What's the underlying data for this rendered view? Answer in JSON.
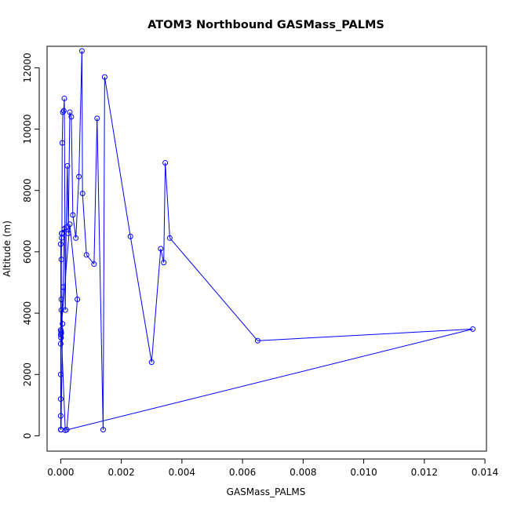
{
  "chart_data": {
    "type": "line",
    "title": "ATOM3 Northbound GASMass_PALMS",
    "xlabel": "GASMass_PALMS",
    "ylabel": "Altitude (m)",
    "xlim": [
      -0.00045,
      0.01405
    ],
    "ylim": [
      -500,
      12700
    ],
    "xticks": [
      0.0,
      0.002,
      0.004,
      0.006,
      0.008,
      0.01,
      0.012,
      0.014
    ],
    "xtick_labels": [
      "0.000",
      "0.002",
      "0.004",
      "0.006",
      "0.008",
      "0.010",
      "0.012",
      "0.014"
    ],
    "yticks": [
      0,
      2000,
      4000,
      6000,
      8000,
      10000,
      12000
    ],
    "ytick_labels": [
      "0",
      "2000",
      "4000",
      "6000",
      "8000",
      "10000",
      "12000"
    ],
    "grid": false,
    "colors": {
      "series": "#0000ff",
      "axis": "#000000"
    },
    "series": [
      {
        "marker": "open-circle",
        "x": [
          0.0,
          0.0,
          0.0,
          0.0,
          0.0,
          1e-05,
          1e-05,
          2e-05,
          2e-05,
          3e-05,
          4e-05,
          5e-05,
          7e-05,
          0.0001,
          0.00012,
          0.00015,
          0.00018,
          0.00022,
          0.00025,
          0.0003,
          0.00035,
          0.0004,
          0.0005,
          0.0006,
          0.0007,
          0.00072,
          0.00085,
          0.0011,
          0.0012,
          0.0014,
          0.00145,
          0.0023,
          0.003,
          0.0033,
          0.0034,
          0.00345,
          0.0036,
          0.0065,
          0.0136,
          0.00015,
          2e-05,
          0.0,
          1e-05,
          8e-05,
          0.00012,
          3e-05,
          0.0,
          1e-05,
          6e-05,
          2e-05,
          0.0,
          0.0003,
          0.00055,
          0.0002
        ],
        "y": [
          200,
          650,
          1200,
          2000,
          3000,
          3200,
          3400,
          4450,
          5750,
          6450,
          6600,
          9550,
          10550,
          10600,
          11000,
          4100,
          6800,
          8800,
          6600,
          10550,
          10400,
          7200,
          6450,
          8450,
          12550,
          7900,
          5900,
          5600,
          10350,
          200,
          11700,
          6500,
          2400,
          6100,
          5650,
          8900,
          6450,
          3100,
          3480,
          180,
          3350,
          3450,
          3200,
          4850,
          6750,
          6600,
          6250,
          200,
          3650,
          4100,
          3300,
          6900,
          4450,
          200
        ]
      }
    ]
  }
}
